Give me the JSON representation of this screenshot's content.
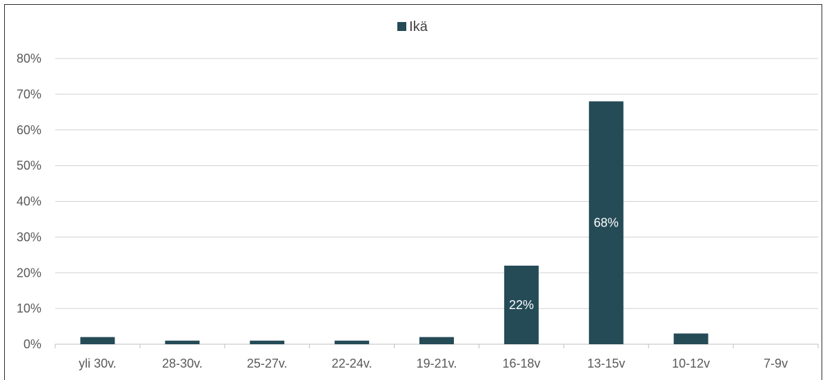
{
  "chart_data": {
    "type": "bar",
    "categories": [
      "yli 30v.",
      "28-30v.",
      "25-27v.",
      "22-24v.",
      "19-21v.",
      "16-18v",
      "13-15v",
      "10-12v",
      "7-9v"
    ],
    "series": [
      {
        "name": "Ikä",
        "values": [
          2,
          1,
          1,
          1,
          2,
          22,
          68,
          3,
          0
        ]
      }
    ],
    "data_labels": [
      "",
      "",
      "",
      "",
      "",
      "22%",
      "68%",
      "",
      ""
    ],
    "ylim": [
      0,
      80
    ],
    "yticks": [
      "0%",
      "10%",
      "20%",
      "30%",
      "40%",
      "50%",
      "60%",
      "70%",
      "80%"
    ],
    "grid": true,
    "legend_position": "top-center",
    "colors": {
      "bar": "#254b57",
      "grid": "#d0d0d0",
      "axis": "#bfbfbf"
    }
  }
}
